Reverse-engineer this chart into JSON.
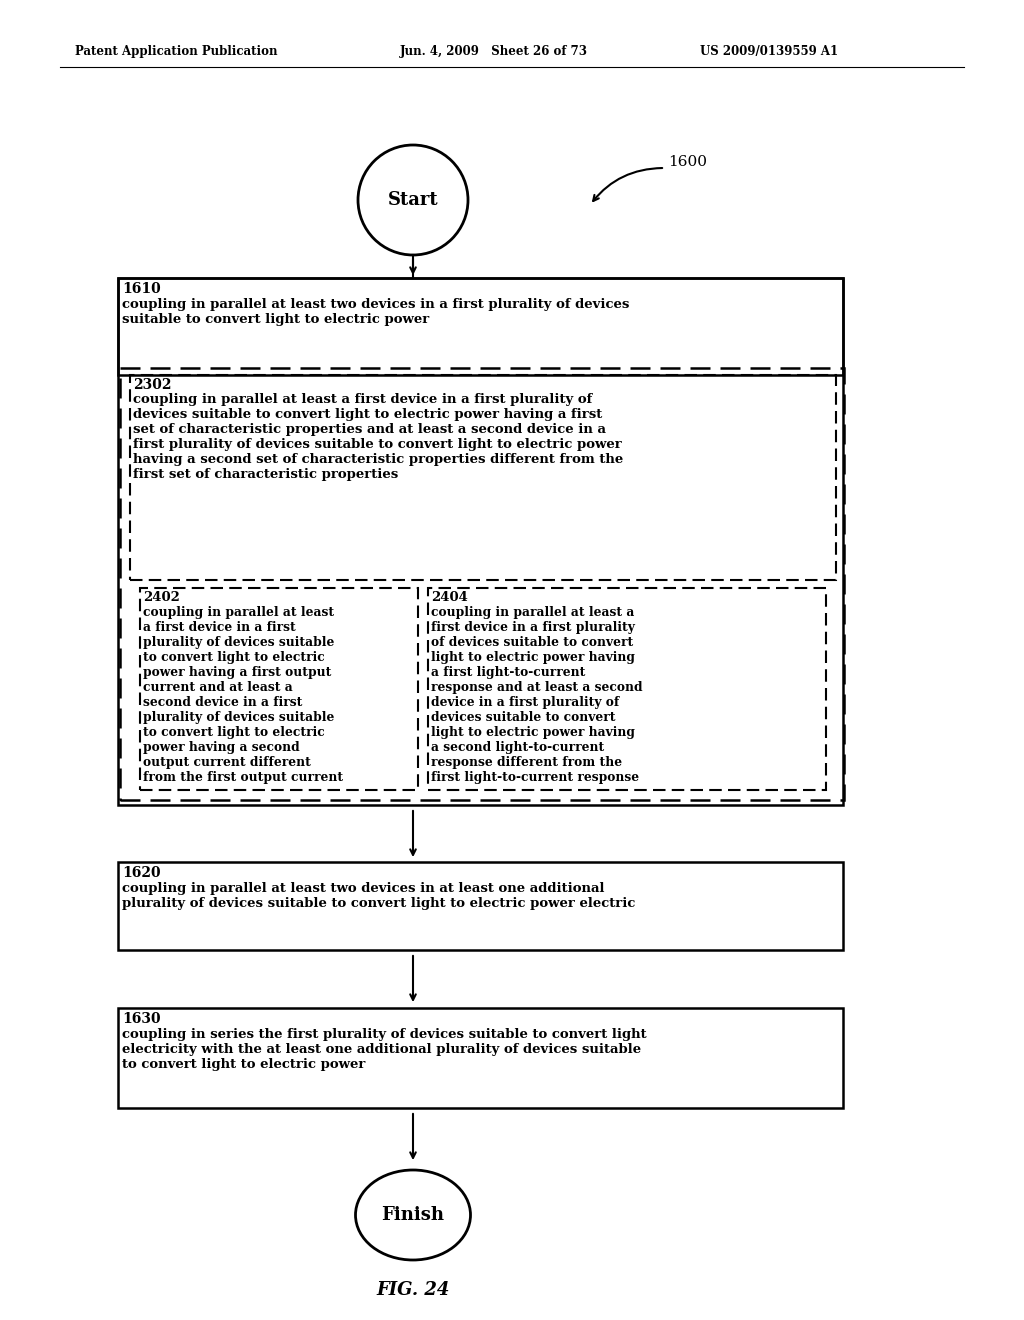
{
  "bg_color": "#ffffff",
  "header_left": "Patent Application Publication",
  "header_mid": "Jun. 4, 2009   Sheet 26 of 73",
  "header_right": "US 2009/0139559 A1",
  "fig_label": "FIG. 24",
  "flow_label": "1600",
  "start_label": "Start",
  "finish_label": "Finish",
  "box1610_label": "1610",
  "box1610_text": "coupling in parallel at least two devices in a first plurality of devices\nsuitable to convert light to electric power",
  "box2302_label": "2302",
  "box2302_text": "coupling in parallel at least a first device in a first plurality of\ndevices suitable to convert light to electric power having a first\nset of characteristic properties and at least a second device in a\nfirst plurality of devices suitable to convert light to electric power\nhaving a second set of characteristic properties different from the\nfirst set of characteristic properties",
  "box2402_label": "2402",
  "box2402_text": "coupling in parallel at least\na first device in a first\nplurality of devices suitable\nto convert light to electric\npower having a first output\ncurrent and at least a\nsecond device in a first\nplurality of devices suitable\nto convert light to electric\npower having a second\noutput current different\nfrom the first output current",
  "box2404_label": "2404",
  "box2404_text": "coupling in parallel at least a\nfirst device in a first plurality\nof devices suitable to convert\nlight to electric power having\na first light-to-current\nresponse and at least a second\ndevice in a first plurality of\ndevices suitable to convert\nlight to electric power having\na second light-to-current\nresponse different from the\nfirst light-to-current response",
  "box1620_label": "1620",
  "box1620_text": "coupling in parallel at least two devices in at least one additional\nplurality of devices suitable to convert light to electric power electric",
  "box1630_label": "1630",
  "box1630_text": "coupling in series the first plurality of devices suitable to convert light\nelectricity with the at least one additional plurality of devices suitable\nto convert light to electric power"
}
